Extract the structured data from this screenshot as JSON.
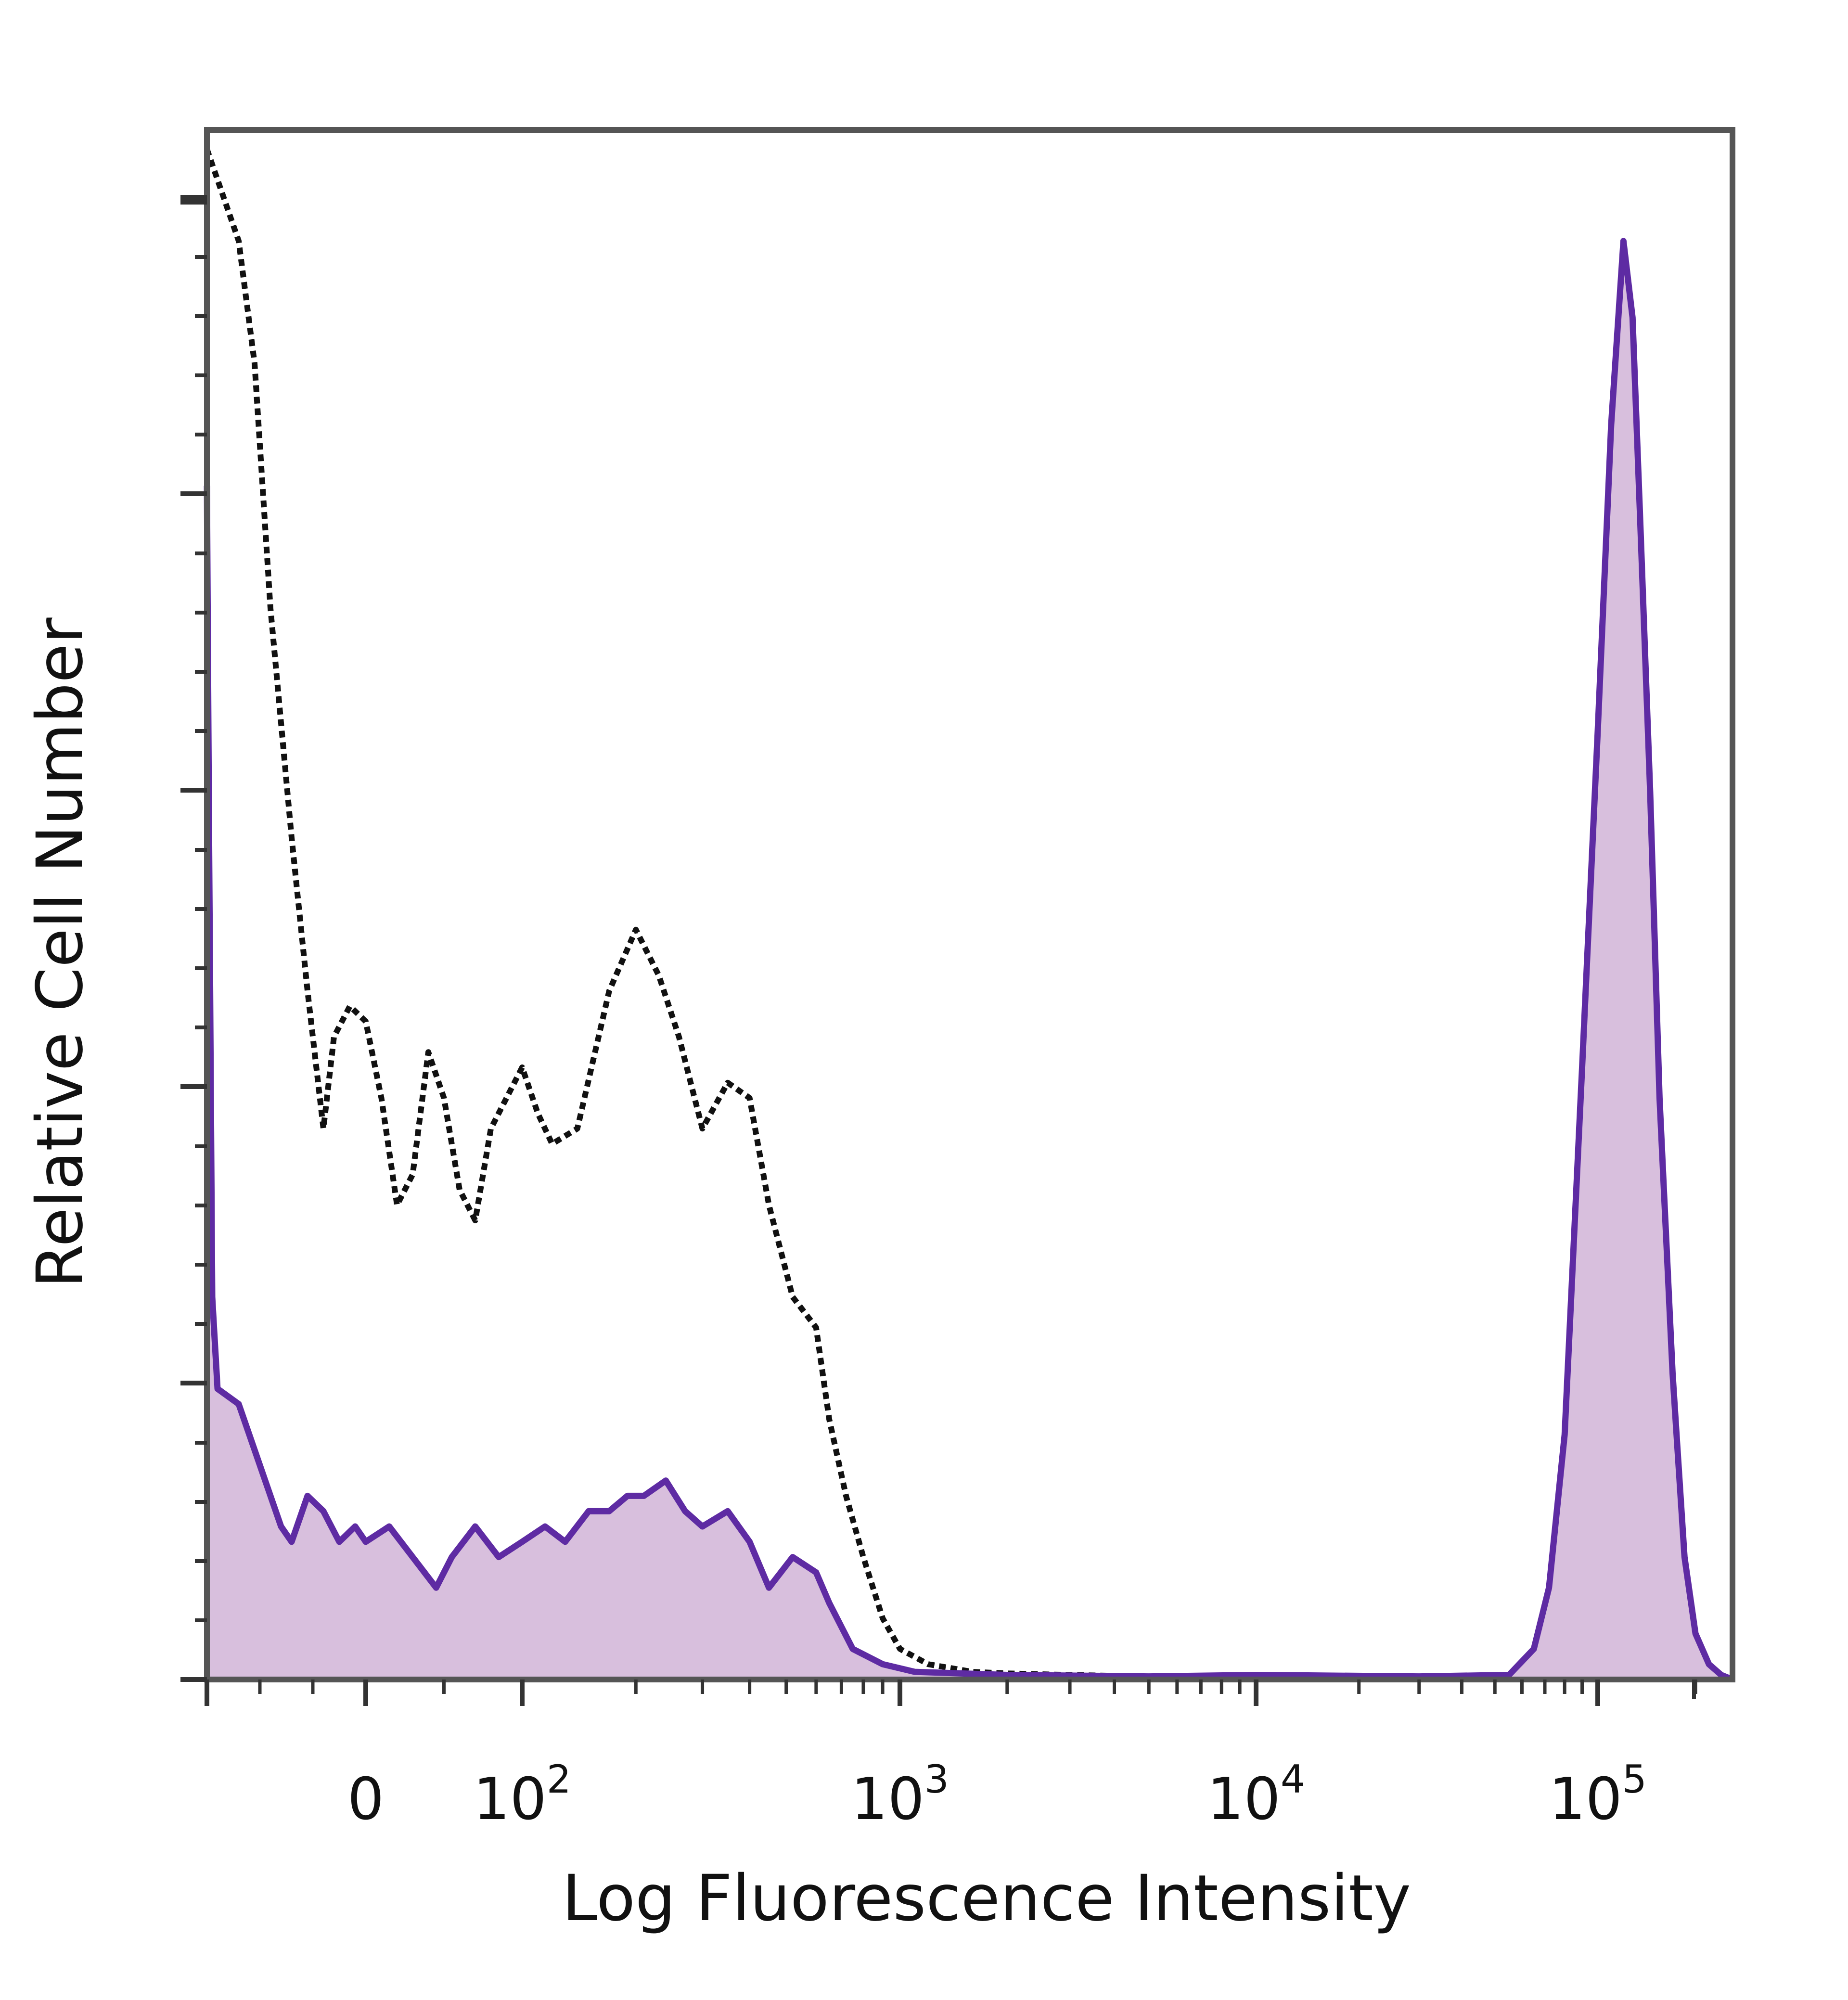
{
  "chart_data": {
    "type": "area",
    "xlabel": "Log Fluorescence Intensity",
    "ylabel": "Relative Cell Number",
    "x_scale": "logicle",
    "xlim": [
      -150,
      260000
    ],
    "ylim": [
      0,
      100
    ],
    "grid": false,
    "legend": "none",
    "x_ticks": [
      {
        "value": 0,
        "base": "0",
        "exp": ""
      },
      {
        "value": 100,
        "base": "10",
        "exp": "2"
      },
      {
        "value": 1000,
        "base": "10",
        "exp": "3"
      },
      {
        "value": 10000,
        "base": "10",
        "exp": "4"
      },
      {
        "value": 100000,
        "base": "10",
        "exp": "5"
      }
    ],
    "series": [
      {
        "style": "dotted",
        "color": "#111111",
        "points": [
          [
            -150,
            100
          ],
          [
            -140,
            98
          ],
          [
            -120,
            94
          ],
          [
            -105,
            86
          ],
          [
            -90,
            70
          ],
          [
            -70,
            55
          ],
          [
            -55,
            45
          ],
          [
            -40,
            36
          ],
          [
            -30,
            42
          ],
          [
            -15,
            44
          ],
          [
            0,
            43
          ],
          [
            10,
            38
          ],
          [
            20,
            31
          ],
          [
            30,
            33
          ],
          [
            40,
            41
          ],
          [
            50,
            38
          ],
          [
            60,
            32
          ],
          [
            70,
            30
          ],
          [
            80,
            36
          ],
          [
            100,
            40
          ],
          [
            110,
            37
          ],
          [
            120,
            35
          ],
          [
            140,
            36
          ],
          [
            170,
            45
          ],
          [
            200,
            49
          ],
          [
            230,
            46
          ],
          [
            260,
            42
          ],
          [
            300,
            36
          ],
          [
            350,
            39
          ],
          [
            400,
            38
          ],
          [
            450,
            31
          ],
          [
            520,
            25
          ],
          [
            600,
            23
          ],
          [
            650,
            17
          ],
          [
            720,
            12
          ],
          [
            800,
            8
          ],
          [
            900,
            4
          ],
          [
            1000,
            2
          ],
          [
            1200,
            1
          ],
          [
            1600,
            0.5
          ],
          [
            2000,
            0.4
          ],
          [
            3000,
            0.3
          ],
          [
            5000,
            0.2
          ],
          [
            10000,
            0.2
          ],
          [
            50000,
            0.2
          ],
          [
            80000,
            0.2
          ],
          [
            260000,
            0
          ]
        ]
      },
      {
        "style": "solid-filled",
        "color": "#5e2ba3",
        "fill": "#d8bfdd",
        "points": [
          [
            -150,
            78
          ],
          [
            -148,
            55
          ],
          [
            -145,
            25
          ],
          [
            -140,
            19
          ],
          [
            -120,
            18
          ],
          [
            -100,
            14
          ],
          [
            -80,
            10
          ],
          [
            -70,
            9
          ],
          [
            -55,
            12
          ],
          [
            -40,
            11
          ],
          [
            -25,
            9
          ],
          [
            -10,
            10
          ],
          [
            0,
            9
          ],
          [
            15,
            10
          ],
          [
            30,
            8
          ],
          [
            45,
            6
          ],
          [
            55,
            8
          ],
          [
            70,
            10
          ],
          [
            85,
            8
          ],
          [
            100,
            9
          ],
          [
            115,
            10
          ],
          [
            130,
            9
          ],
          [
            150,
            11
          ],
          [
            170,
            11
          ],
          [
            190,
            12
          ],
          [
            210,
            12
          ],
          [
            240,
            13
          ],
          [
            270,
            11
          ],
          [
            300,
            10
          ],
          [
            350,
            11
          ],
          [
            400,
            9
          ],
          [
            450,
            6
          ],
          [
            520,
            8
          ],
          [
            600,
            7
          ],
          [
            650,
            5
          ],
          [
            750,
            2
          ],
          [
            900,
            1
          ],
          [
            1100,
            0.5
          ],
          [
            2000,
            0.3
          ],
          [
            5000,
            0.2
          ],
          [
            10000,
            0.3
          ],
          [
            30000,
            0.2
          ],
          [
            55000,
            0.3
          ],
          [
            65000,
            2
          ],
          [
            72000,
            6
          ],
          [
            80000,
            16
          ],
          [
            90000,
            40
          ],
          [
            100000,
            62
          ],
          [
            110000,
            82
          ],
          [
            120000,
            94
          ],
          [
            128000,
            89
          ],
          [
            135000,
            76
          ],
          [
            145000,
            58
          ],
          [
            155000,
            38
          ],
          [
            170000,
            20
          ],
          [
            185000,
            8
          ],
          [
            200000,
            3
          ],
          [
            220000,
            1
          ],
          [
            240000,
            0.3
          ],
          [
            260000,
            0
          ]
        ]
      }
    ]
  }
}
